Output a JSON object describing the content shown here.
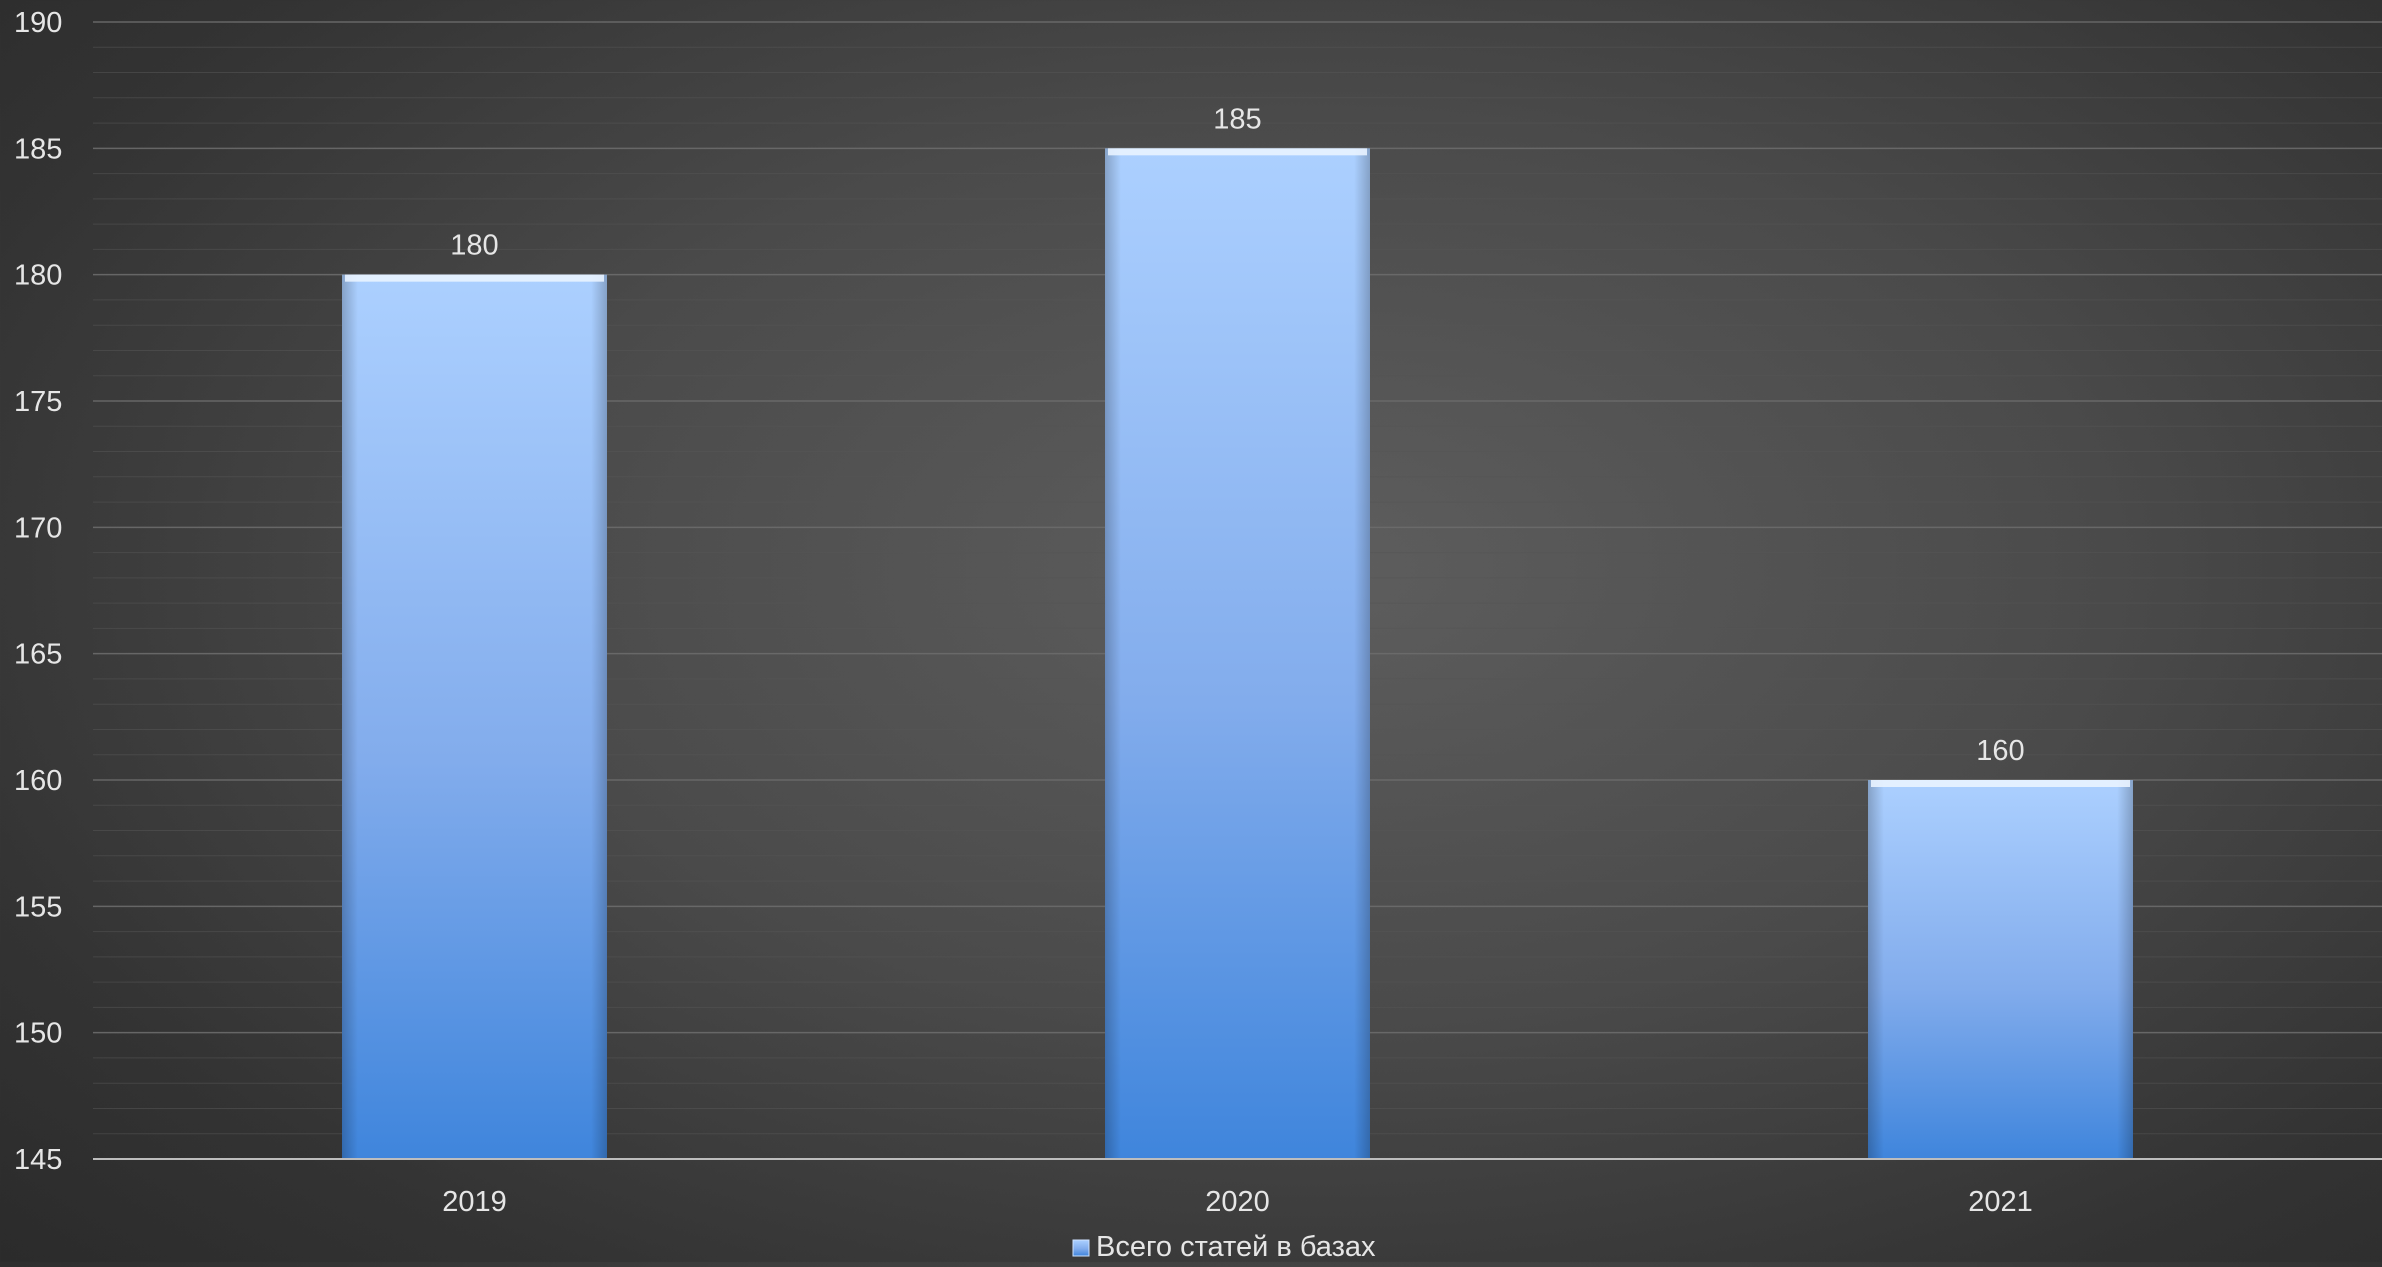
{
  "chart_data": {
    "type": "bar",
    "title": "",
    "xlabel": "",
    "ylabel": "",
    "categories": [
      "2019",
      "2020",
      "2021"
    ],
    "series": [
      {
        "name": "Всего статей в базах",
        "values": [
          180,
          185,
          160
        ]
      }
    ],
    "ylim": [
      145,
      190
    ],
    "y_ticks": [
      "145",
      "150",
      "155",
      "160",
      "165",
      "170",
      "175",
      "180",
      "185",
      "190"
    ],
    "data_labels": [
      "180",
      "185",
      "160"
    ],
    "grid": true,
    "legend_position": "bottom",
    "colors": {
      "bar_top": "#a9ccff",
      "bar_bottom": "#3f85dc",
      "text": "#e6e6e6",
      "grid_major": "#6b6b6b",
      "grid_minor": "#555555"
    }
  }
}
